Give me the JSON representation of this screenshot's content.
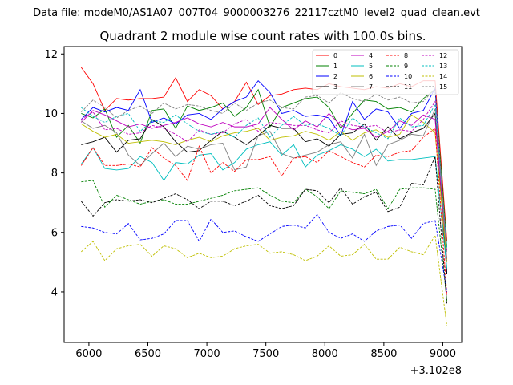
{
  "suptitle": "Data file: modeM0/AS1A07_007T04_9000003276_22117cztM0_level2_quad_clean.evt",
  "chart_data": {
    "type": "line",
    "title": "Quadrant 2 module wise count rates with 100.0s bins.",
    "xlabel": "",
    "ylabel": "",
    "x_offset_label": "+3.102e8",
    "xlim": [
      5790,
      9160
    ],
    "ylim": [
      2.3,
      12.25
    ],
    "xticks": [
      6000,
      6500,
      7000,
      7500,
      8000,
      8500,
      9000
    ],
    "yticks": [
      4,
      6,
      8,
      10,
      12
    ],
    "grid": false,
    "legend_position": "top-right",
    "x": [
      5935,
      6035,
      6135,
      6235,
      6335,
      6435,
      6535,
      6635,
      6735,
      6835,
      6935,
      7035,
      7135,
      7235,
      7335,
      7435,
      7535,
      7635,
      7735,
      7835,
      7935,
      8035,
      8135,
      8235,
      8335,
      8435,
      8535,
      8635,
      8735,
      8835,
      8935,
      9035
    ],
    "series": [
      {
        "name": "0",
        "color": "#ff0000",
        "dash": "solid",
        "values": [
          11.55,
          11.0,
          10.1,
          10.5,
          10.45,
          10.5,
          10.5,
          10.55,
          11.2,
          10.4,
          10.8,
          10.6,
          10.15,
          10.4,
          11.05,
          10.3,
          10.6,
          10.65,
          10.8,
          10.85,
          10.8,
          11.0,
          10.9,
          10.85,
          10.8,
          10.9,
          10.85,
          11.0,
          10.9,
          11.1,
          11.1,
          5.7
        ]
      },
      {
        "name": "1",
        "color": "#008000",
        "dash": "solid",
        "values": [
          10.0,
          9.85,
          10.15,
          9.2,
          9.6,
          9.0,
          10.1,
          10.15,
          9.5,
          10.25,
          10.1,
          10.2,
          10.35,
          9.9,
          10.2,
          10.8,
          9.55,
          10.2,
          10.35,
          10.5,
          10.55,
          10.2,
          9.5,
          10.0,
          10.45,
          10.4,
          10.15,
          10.2,
          10.05,
          10.5,
          10.8,
          5.5
        ]
      },
      {
        "name": "2",
        "color": "#0000ff",
        "dash": "solid",
        "values": [
          9.8,
          10.2,
          10.05,
          10.2,
          10.1,
          10.8,
          9.7,
          9.85,
          9.65,
          9.95,
          10.0,
          9.8,
          10.15,
          10.4,
          10.55,
          11.1,
          10.7,
          10.0,
          10.1,
          9.9,
          9.95,
          9.85,
          9.25,
          10.4,
          9.8,
          10.15,
          10.05,
          9.5,
          10.0,
          10.1,
          10.85,
          4.6
        ]
      },
      {
        "name": "3",
        "color": "#000000",
        "dash": "solid",
        "values": [
          8.95,
          9.05,
          9.2,
          8.7,
          9.1,
          9.15,
          9.8,
          9.55,
          9.05,
          8.7,
          8.75,
          9.1,
          9.4,
          9.2,
          8.95,
          9.25,
          9.6,
          9.5,
          9.5,
          9.05,
          9.15,
          8.9,
          9.3,
          9.35,
          9.65,
          9.1,
          9.55,
          9.15,
          9.35,
          9.5,
          10.0,
          4.6
        ]
      },
      {
        "name": "4",
        "color": "#bf00bf",
        "dash": "solid",
        "values": [
          9.7,
          10.1,
          9.95,
          9.75,
          9.55,
          9.65,
          9.5,
          9.6,
          9.7,
          9.85,
          9.65,
          9.55,
          9.7,
          9.55,
          9.55,
          9.65,
          10.2,
          9.8,
          9.45,
          9.75,
          9.55,
          10.0,
          9.6,
          9.45,
          9.5,
          9.2,
          9.4,
          9.75,
          9.6,
          9.95,
          9.8,
          5.1
        ]
      },
      {
        "name": "5",
        "color": "#00bfbf",
        "dash": "solid",
        "values": [
          8.3,
          8.85,
          8.15,
          8.1,
          8.15,
          8.55,
          8.35,
          7.75,
          8.35,
          8.3,
          8.6,
          8.65,
          8.1,
          8.35,
          8.8,
          8.95,
          9.05,
          8.6,
          8.95,
          8.2,
          8.6,
          8.75,
          8.95,
          8.8,
          8.55,
          8.8,
          8.4,
          8.45,
          8.45,
          8.5,
          8.55,
          4.8
        ]
      },
      {
        "name": "6",
        "color": "#bfbf00",
        "dash": "solid",
        "values": [
          9.65,
          9.4,
          9.2,
          9.3,
          9.0,
          9.05,
          9.1,
          9.05,
          8.95,
          9.1,
          9.2,
          9.05,
          9.25,
          9.35,
          9.4,
          9.5,
          9.1,
          9.2,
          9.25,
          9.4,
          9.3,
          9.1,
          9.4,
          9.1,
          9.35,
          9.45,
          9.2,
          9.3,
          9.95,
          9.7,
          9.35,
          5.0
        ]
      },
      {
        "name": "7",
        "color": "#808080",
        "dash": "solid",
        "values": [
          9.75,
          9.5,
          9.6,
          9.35,
          8.6,
          8.25,
          8.65,
          9.0,
          8.55,
          8.9,
          8.8,
          8.95,
          9.0,
          8.1,
          8.2,
          9.25,
          9.4,
          8.65,
          8.5,
          8.6,
          8.7,
          8.95,
          9.05,
          8.5,
          9.3,
          8.25,
          8.95,
          9.1,
          9.3,
          9.25,
          10.15,
          5.35
        ]
      },
      {
        "name": "8",
        "color": "#ff0000",
        "dash": "dashed",
        "values": [
          8.25,
          8.85,
          8.25,
          8.25,
          8.3,
          8.2,
          8.85,
          8.5,
          8.25,
          7.75,
          8.9,
          8.0,
          8.35,
          8.05,
          8.45,
          8.45,
          8.55,
          7.9,
          8.5,
          8.55,
          8.35,
          8.75,
          8.55,
          8.35,
          8.2,
          8.6,
          8.55,
          8.7,
          8.75,
          9.2,
          9.5,
          3.9
        ]
      },
      {
        "name": "9",
        "color": "#008000",
        "dash": "dashed",
        "values": [
          7.7,
          7.75,
          6.85,
          7.25,
          7.1,
          6.95,
          7.05,
          7.1,
          6.95,
          6.95,
          7.05,
          7.15,
          7.25,
          7.4,
          7.45,
          7.5,
          7.25,
          7.05,
          7.0,
          7.45,
          7.2,
          6.8,
          7.4,
          7.35,
          7.3,
          7.45,
          6.8,
          7.45,
          7.5,
          7.5,
          7.45,
          3.7
        ]
      },
      {
        "name": "10",
        "color": "#0000ff",
        "dash": "dashed",
        "values": [
          6.2,
          6.15,
          6.0,
          5.95,
          6.3,
          5.75,
          5.8,
          5.95,
          6.4,
          6.4,
          5.7,
          6.45,
          6.0,
          6.05,
          5.85,
          5.7,
          5.95,
          6.2,
          6.25,
          6.15,
          6.6,
          6.0,
          5.8,
          5.95,
          5.7,
          6.05,
          6.2,
          6.25,
          5.8,
          6.3,
          6.4,
          4.0
        ]
      },
      {
        "name": "11",
        "color": "#000000",
        "dash": "dashed",
        "values": [
          7.05,
          6.55,
          7.0,
          7.1,
          7.05,
          7.1,
          7.0,
          7.15,
          7.3,
          7.1,
          6.8,
          7.05,
          7.05,
          6.9,
          7.05,
          7.25,
          6.9,
          6.8,
          6.9,
          7.45,
          7.4,
          7.0,
          7.5,
          6.95,
          7.2,
          7.35,
          6.7,
          6.85,
          7.65,
          7.6,
          8.55,
          3.6
        ]
      },
      {
        "name": "12",
        "color": "#bf00bf",
        "dash": "dashed",
        "values": [
          9.8,
          10.05,
          9.45,
          9.5,
          9.3,
          9.35,
          9.6,
          9.5,
          9.3,
          9.05,
          9.45,
          9.3,
          9.35,
          9.65,
          9.8,
          9.4,
          9.7,
          9.65,
          9.6,
          9.6,
          9.45,
          9.35,
          9.75,
          9.6,
          9.55,
          9.6,
          9.35,
          9.45,
          9.4,
          9.8,
          10.4,
          5.4
        ]
      },
      {
        "name": "13",
        "color": "#00bfbf",
        "dash": "dashed",
        "values": [
          10.2,
          9.9,
          9.7,
          9.9,
          10.0,
          9.4,
          9.75,
          9.7,
          9.95,
          9.65,
          9.4,
          9.3,
          9.4,
          9.2,
          9.6,
          9.85,
          9.2,
          9.6,
          9.9,
          9.6,
          9.65,
          9.5,
          9.25,
          9.85,
          9.55,
          9.35,
          9.15,
          9.85,
          9.55,
          9.6,
          10.3,
          5.45
        ]
      },
      {
        "name": "14",
        "color": "#bfbf00",
        "dash": "dashed",
        "values": [
          5.35,
          5.7,
          5.05,
          5.45,
          5.55,
          5.6,
          5.2,
          5.55,
          5.45,
          5.15,
          5.3,
          5.15,
          5.2,
          5.45,
          5.55,
          5.6,
          5.3,
          5.35,
          5.25,
          5.05,
          5.2,
          5.55,
          5.2,
          5.25,
          5.6,
          5.1,
          5.1,
          5.5,
          5.35,
          5.25,
          5.9,
          2.85
        ]
      },
      {
        "name": "15",
        "color": "#808080",
        "dash": "dashed",
        "values": [
          10.05,
          10.45,
          10.2,
          9.85,
          10.1,
          10.25,
          10.0,
          10.35,
          10.15,
          10.3,
          10.25,
          10.1,
          10.0,
          10.35,
          10.1,
          10.35,
          10.45,
          10.2,
          10.15,
          10.55,
          10.6,
          10.35,
          10.7,
          10.5,
          10.4,
          10.65,
          10.45,
          10.55,
          10.35,
          10.4,
          10.85,
          5.05
        ]
      }
    ]
  }
}
